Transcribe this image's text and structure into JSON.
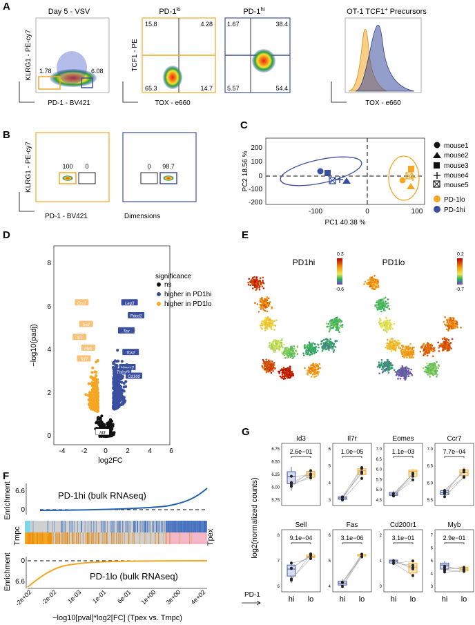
{
  "panels": {
    "A": {
      "letter": "A",
      "plot1": {
        "title": "Day 5 - VSV",
        "ylabel": "KLRG1 - PE-cy7",
        "xlabel": "PD-1 - BV421",
        "gate_left": "1.78",
        "gate_right": "6.08"
      },
      "plot2": {
        "title": "PD-1",
        "title_sup": "lo",
        "ylabel": "TCF1 - PE",
        "xlabel": "TOX - e660",
        "q_tl": "15.8",
        "q_tr": "4.28",
        "q_bl": "65.3",
        "q_br": "14.7"
      },
      "plot3": {
        "title": "PD-1",
        "title_sup": "hi",
        "q_tl": "1.67",
        "q_tr": "38.4",
        "q_bl": "5.57",
        "q_br": "54.4"
      },
      "plot4": {
        "title_pre": "OT-1 TCF1",
        "title_sup": "+",
        "title_post": " Precursors",
        "xlabel": "TOX - e660"
      }
    },
    "B": {
      "letter": "B",
      "ylabel": "KLRG1 - PE-cy7",
      "xlabel": "PD-1 - BV421",
      "xlabel2": "Dimensions",
      "g1_left": "100",
      "g1_right": "0",
      "g2_left": "0",
      "g2_right": "98.7"
    },
    "C": {
      "letter": "C",
      "xlabel": "PC1 40.38 %",
      "ylabel": "PC2 18.56 %",
      "xticks": [
        "-100",
        "0",
        "100"
      ],
      "yticks": [
        "200",
        "100",
        "0",
        "-100",
        "-200"
      ],
      "legend_mice": [
        "mouse1",
        "mouse2",
        "mouse3",
        "mouse4",
        "mouse5"
      ],
      "legend_groups": [
        "PD-1lo",
        "PD-1hi"
      ]
    },
    "D": {
      "letter": "D",
      "xlabel": "log2FC",
      "ylabel": "−log10(padj)",
      "xticks": [
        "-4",
        "-2",
        "0",
        "2",
        "4",
        "6"
      ],
      "yticks": [
        "0",
        "2",
        "4",
        "6",
        "8"
      ],
      "legend_title": "significance",
      "legend_items": [
        "ns",
        "higher in PD1hi",
        "higher in PD1lo"
      ],
      "labels_hi": [
        "Pdcd1",
        "Tox",
        "Tox2",
        "Havcr2",
        "Tnfrsf9",
        "Cd160",
        "Lag3"
      ],
      "labels_lo": [
        "Ccr7",
        "Sell",
        "Il7r",
        "Myb",
        "Tcf7",
        "Id3"
      ]
    },
    "E": {
      "letter": "E",
      "title1": "PD1hi",
      "title2": "PD1lo",
      "scale1_max": "0.3",
      "scale1_min": "-0.6",
      "scale2_max": "0.2",
      "scale2_min": "-0.7"
    },
    "F": {
      "letter": "F",
      "ylabel": "Enrichment",
      "top_title": "PD-1hi (bulk RNAseq)",
      "bottom_title": "PD-1lo (bulk RNAseq)",
      "top_tick": "6.6",
      "top_zero": "0",
      "bottom_zero": "0",
      "bottom_tick": "6.6",
      "left_label": "Tmpc",
      "right_label": "Tpex",
      "xticks": [
        "-2e+02",
        "-2e-02",
        "1e-03",
        "1e-01",
        "6e-01",
        "1e+00",
        "3e+00",
        "4e+02"
      ],
      "xlabel": "−log10[pval]*log2[FC] (Tpex vs. Tmpc)"
    },
    "G": {
      "letter": "G",
      "ylabel": "log2(normalized counts)",
      "pd1_label": "PD-1",
      "xcats": [
        "hi",
        "lo"
      ],
      "genes": [
        {
          "name": "Id3",
          "p": "2.6e−01",
          "yticks": [
            "6.75",
            "6.50",
            "6.25",
            "6.00",
            "5.75"
          ]
        },
        {
          "name": "Il7r",
          "p": "1.0e−05",
          "yticks": [
            "6",
            "5",
            "4",
            "3"
          ]
        },
        {
          "name": "Eomes",
          "p": "1.1e−03",
          "yticks": [
            "7.0",
            "6.5",
            "6.0",
            "5.5",
            "5.0",
            "4.5"
          ]
        },
        {
          "name": "Ccr7",
          "p": "7.7e−04",
          "yticks": [
            "7.0",
            "6.5",
            "6.0",
            "5.5"
          ]
        },
        {
          "name": "Sell",
          "p": "9.1e−04",
          "yticks": [
            "8",
            "7",
            "6"
          ]
        },
        {
          "name": "Fas",
          "p": "3.1e−06",
          "yticks": [
            "6",
            "5",
            "4"
          ]
        },
        {
          "name": "Cd200r1",
          "p": "3.1e−01",
          "yticks": [
            "2",
            "1",
            "0"
          ]
        },
        {
          "name": "Myb",
          "p": "2.9e−01",
          "yticks": [
            "7",
            "6",
            "5",
            "4",
            "3"
          ]
        }
      ]
    }
  },
  "colors": {
    "orange": "#F5A623",
    "blue": "#3B4FA0",
    "black": "#111111",
    "pink": "#F4B7C8",
    "cyan": "#7FD6E8",
    "grey": "#D0D0D0"
  }
}
